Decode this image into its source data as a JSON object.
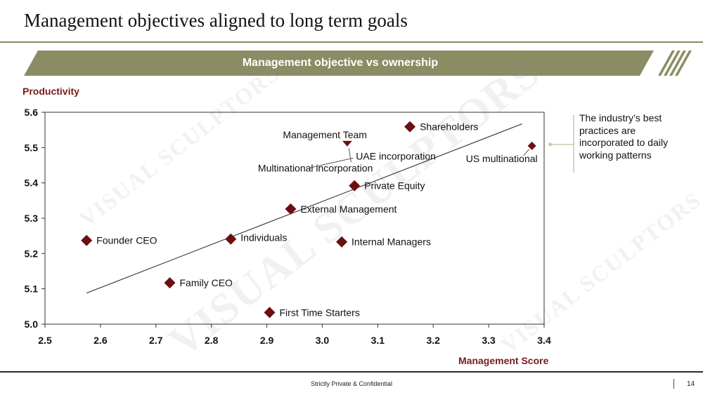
{
  "slide": {
    "title": "Management objectives aligned to long term goals",
    "banner": "Management objective vs ownership",
    "callout": "The industry’s best practices are incorporated to daily working patterns",
    "footer": "Strictly Private & Confidential",
    "page_number": "14",
    "watermark": "VISUAL SCULPTORS"
  },
  "colors": {
    "banner": "#8c8c64",
    "marker": "#6b0f12",
    "axis_title": "#7a1a1a",
    "callout_line": "#c8c8b0"
  },
  "chart_data": {
    "type": "scatter",
    "xlabel": "Management Score",
    "ylabel": "Productivity",
    "xlim": [
      2.5,
      3.4
    ],
    "ylim": [
      5.0,
      5.6
    ],
    "xticks": [
      "2.5",
      "2.6",
      "2.7",
      "2.8",
      "2.9",
      "3.0",
      "3.1",
      "3.2",
      "3.3",
      "3.4"
    ],
    "yticks": [
      "5.0",
      "5.1",
      "5.2",
      "5.3",
      "5.4",
      "5.5",
      "5.6"
    ],
    "grid": false,
    "points": [
      {
        "label": "Founder CEO",
        "x": 2.575,
        "y": 5.237
      },
      {
        "label": "Family CEO",
        "x": 2.725,
        "y": 5.117
      },
      {
        "label": "Individuals",
        "x": 2.835,
        "y": 5.241
      },
      {
        "label": "First Time Starters",
        "x": 2.905,
        "y": 5.033
      },
      {
        "label": "External Management",
        "x": 2.943,
        "y": 5.326
      },
      {
        "label": "Internal Managers",
        "x": 3.035,
        "y": 5.233
      },
      {
        "label": "Private Equity",
        "x": 3.058,
        "y": 5.392
      },
      {
        "label": "Multinational incorporation",
        "x": 3.043,
        "y": 5.51
      },
      {
        "label": "Management Team",
        "x": 3.045,
        "y": 5.511
      },
      {
        "label": "UAE incorporation",
        "x": 3.048,
        "y": 5.51
      },
      {
        "label": "Shareholders",
        "x": 3.158,
        "y": 5.559
      },
      {
        "label": "US multinational",
        "x": 3.378,
        "y": 5.505
      }
    ],
    "trendline": {
      "x1": 2.575,
      "y1": 5.088,
      "x2": 3.36,
      "y2": 5.567
    }
  }
}
